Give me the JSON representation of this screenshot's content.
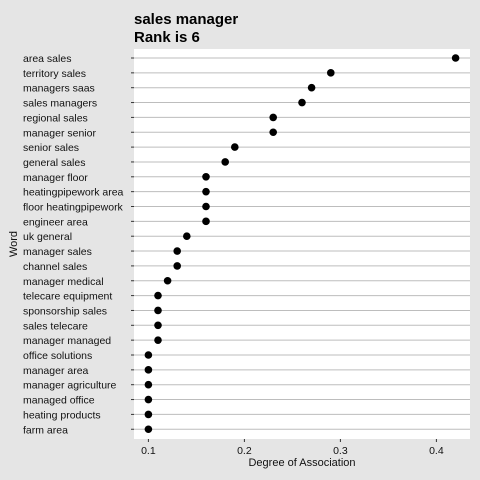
{
  "chart_data": {
    "type": "scatter",
    "title": [
      "sales manager",
      "Rank is 6"
    ],
    "xlabel": "Degree of Association",
    "ylabel": "Word",
    "xlim": [
      0.085,
      0.435
    ],
    "xticks": [
      0.1,
      0.2,
      0.3,
      0.4
    ],
    "xtick_labels": [
      "0.1",
      "0.2",
      "0.3",
      "0.4"
    ],
    "grid": "horizontal",
    "background": "#ffffff",
    "gridline_color": "#bdbdbd",
    "point_color": "#000000",
    "points": [
      {
        "word": "area sales",
        "value": 0.42
      },
      {
        "word": "territory sales",
        "value": 0.29
      },
      {
        "word": "managers saas",
        "value": 0.27
      },
      {
        "word": "sales managers",
        "value": 0.26
      },
      {
        "word": "regional sales",
        "value": 0.23
      },
      {
        "word": "manager senior",
        "value": 0.23
      },
      {
        "word": "senior sales",
        "value": 0.19
      },
      {
        "word": "general sales",
        "value": 0.18
      },
      {
        "word": "manager floor",
        "value": 0.16
      },
      {
        "word": "heatingpipework area",
        "value": 0.16
      },
      {
        "word": "floor heatingpipework",
        "value": 0.16
      },
      {
        "word": "engineer area",
        "value": 0.16
      },
      {
        "word": "uk general",
        "value": 0.14
      },
      {
        "word": "manager sales",
        "value": 0.13
      },
      {
        "word": "channel sales",
        "value": 0.13
      },
      {
        "word": "manager medical",
        "value": 0.12
      },
      {
        "word": "telecare equipment",
        "value": 0.11
      },
      {
        "word": "sponsorship sales",
        "value": 0.11
      },
      {
        "word": "sales telecare",
        "value": 0.11
      },
      {
        "word": "manager managed",
        "value": 0.11
      },
      {
        "word": "office solutions",
        "value": 0.1
      },
      {
        "word": "manager area",
        "value": 0.1
      },
      {
        "word": "manager agriculture",
        "value": 0.1
      },
      {
        "word": "managed office",
        "value": 0.1
      },
      {
        "word": "heating products",
        "value": 0.1
      },
      {
        "word": "farm area",
        "value": 0.1
      }
    ]
  }
}
